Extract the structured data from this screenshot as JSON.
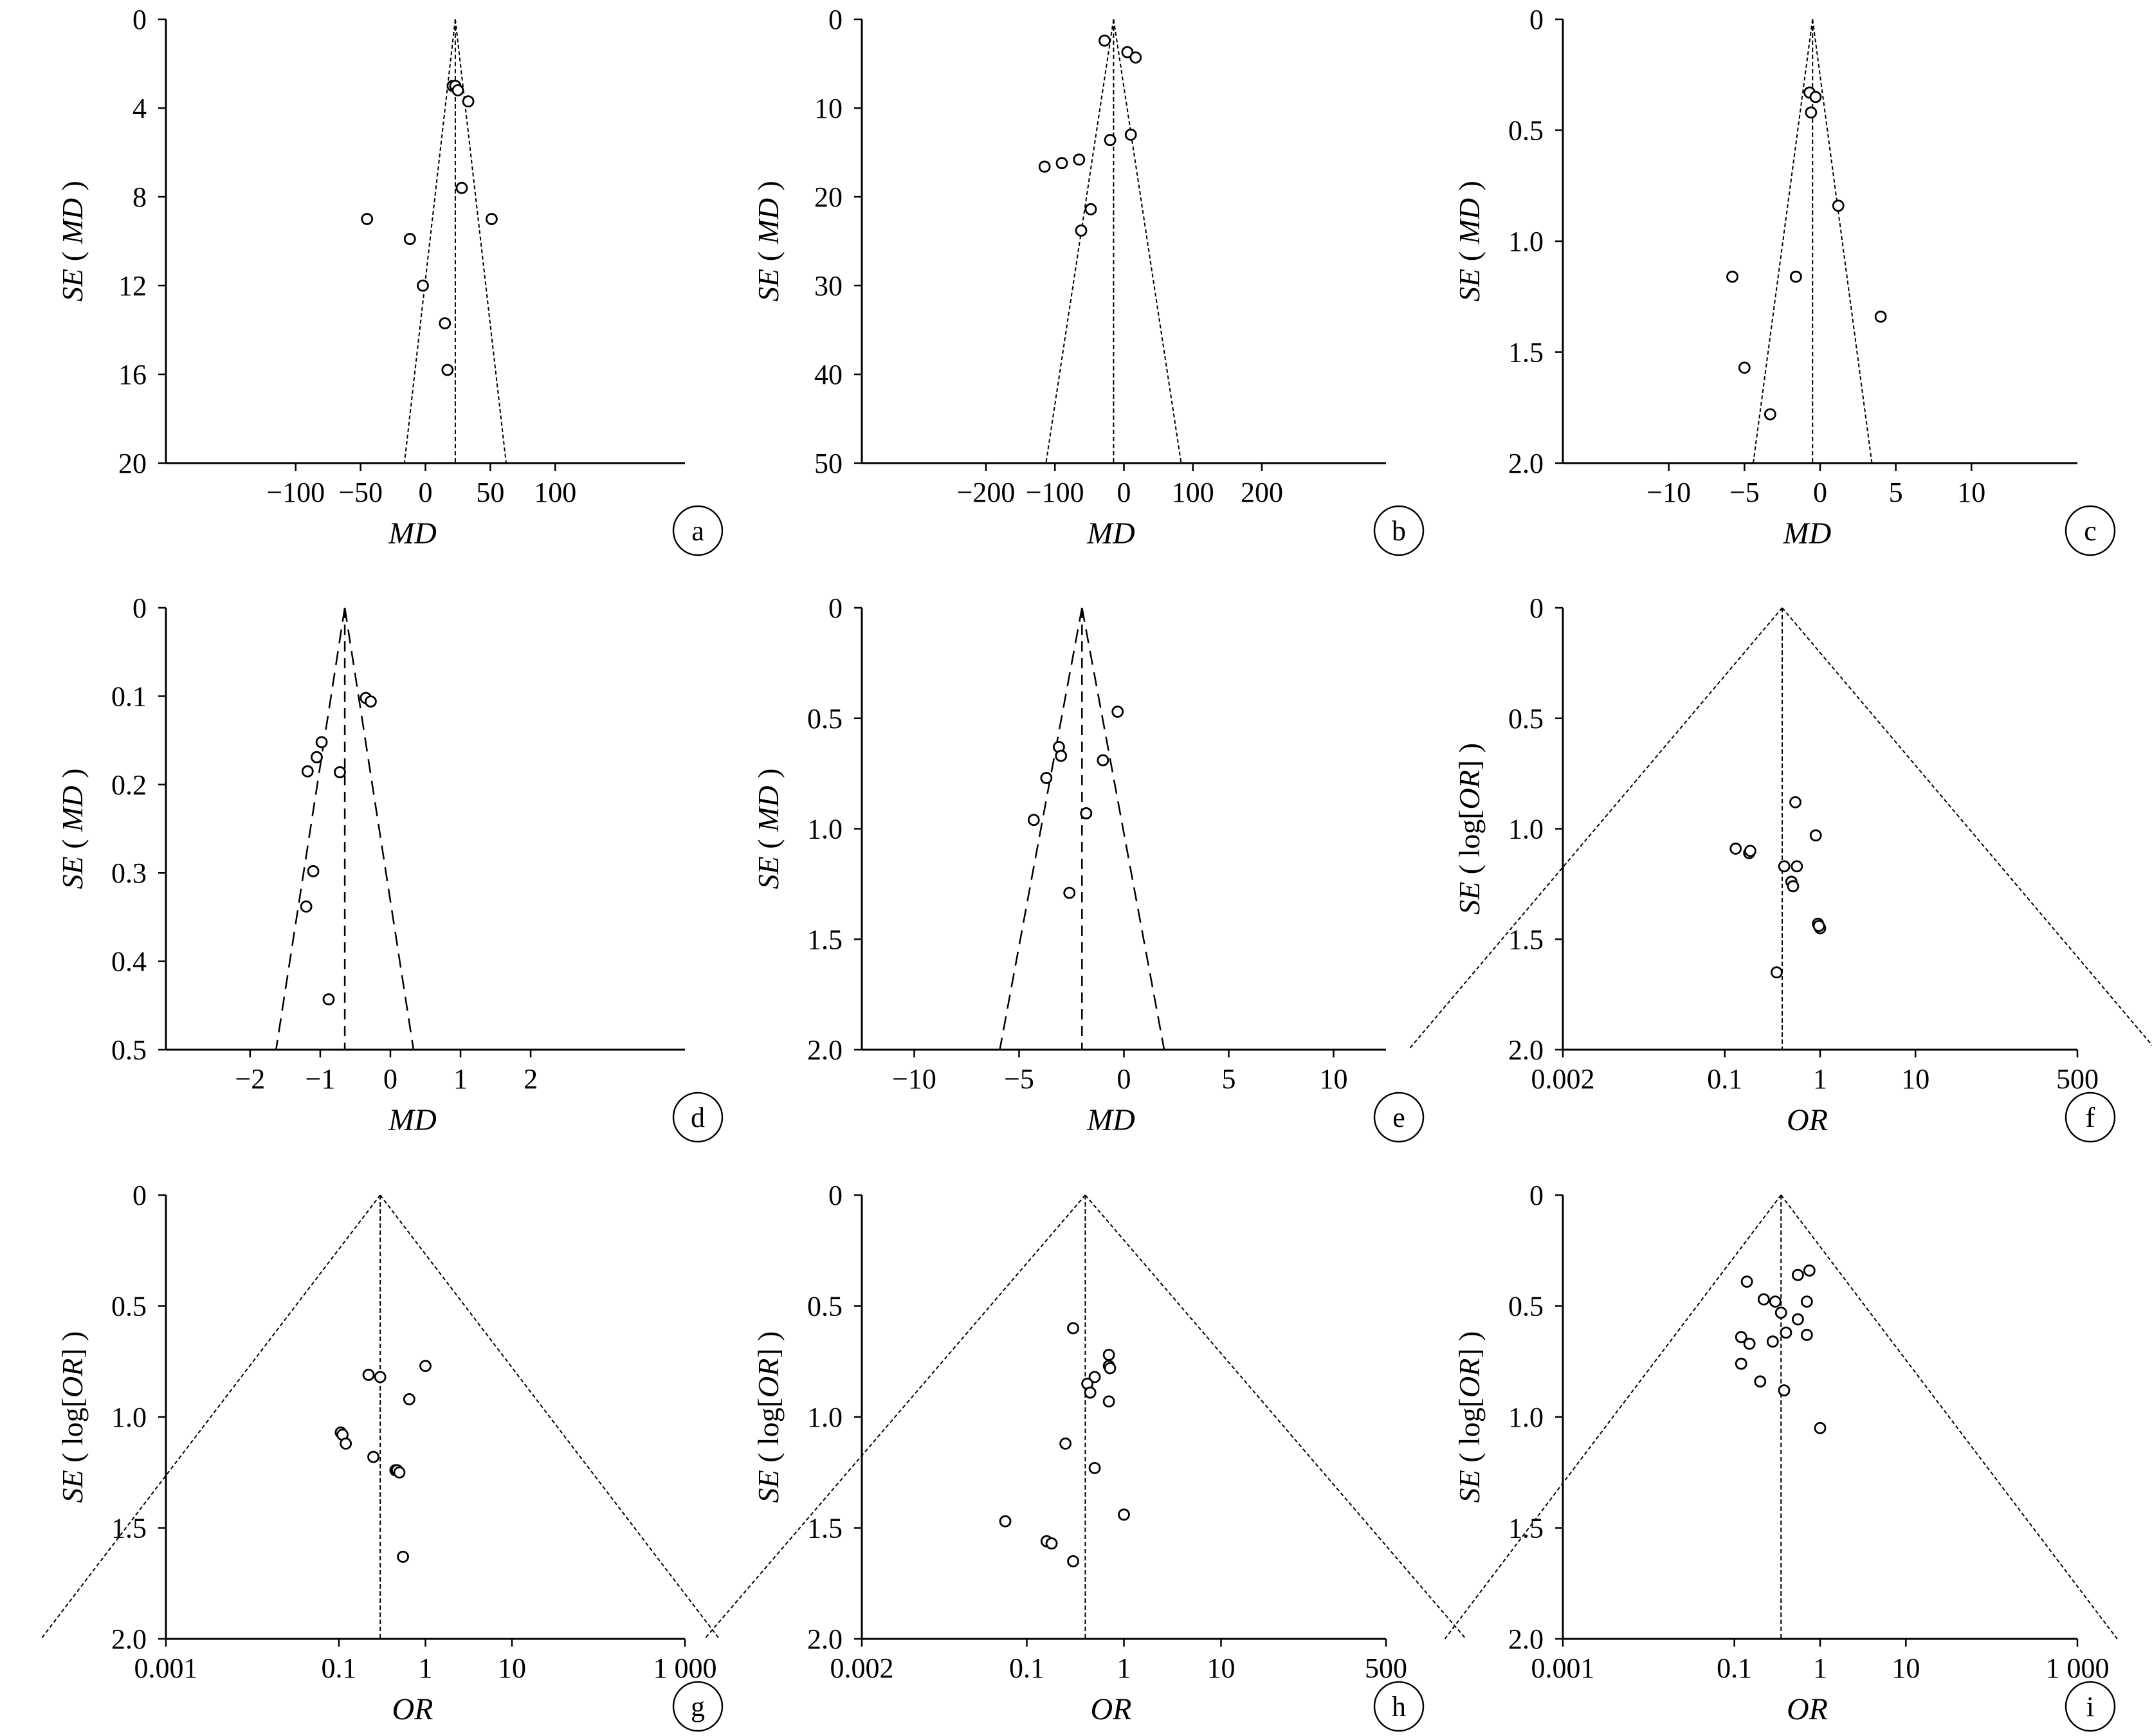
{
  "chart_data": [
    {
      "type": "scatter",
      "panel": "a",
      "xlabel": "MD",
      "ylabel": "SE ( MD )",
      "xscale": "linear",
      "xlim": [
        -200,
        200
      ],
      "ylim": [
        0,
        20
      ],
      "y_inverted": true,
      "xticks": [
        {
          "v": -100,
          "label": "−100"
        },
        {
          "v": -50,
          "label": "−50"
        },
        {
          "v": 0,
          "label": "0"
        },
        {
          "v": 50,
          "label": "50"
        },
        {
          "v": 100,
          "label": "100"
        }
      ],
      "yticks": [
        {
          "v": 0,
          "label": "0"
        },
        {
          "v": 4,
          "label": "4"
        },
        {
          "v": 8,
          "label": "8"
        },
        {
          "v": 12,
          "label": "12"
        },
        {
          "v": 16,
          "label": "16"
        },
        {
          "v": 20,
          "label": "20"
        }
      ],
      "funnel": {
        "pooled": 23,
        "z": 1.96,
        "linestyle": "fine"
      },
      "points": [
        [
          21,
          3.0
        ],
        [
          23,
          3.0
        ],
        [
          25,
          3.2
        ],
        [
          33,
          3.7
        ],
        [
          28,
          7.6
        ],
        [
          -45,
          9.0
        ],
        [
          51,
          9.0
        ],
        [
          -12,
          9.9
        ],
        [
          -2,
          12.0
        ],
        [
          15,
          13.7
        ],
        [
          17,
          15.8
        ]
      ]
    },
    {
      "type": "scatter",
      "panel": "b",
      "xlabel": "MD",
      "ylabel": "SE ( MD )",
      "xscale": "linear",
      "xlim": [
        -380,
        380
      ],
      "ylim": [
        0,
        50
      ],
      "y_inverted": true,
      "xticks": [
        {
          "v": -200,
          "label": "−200"
        },
        {
          "v": -100,
          "label": "−100"
        },
        {
          "v": 0,
          "label": "0"
        },
        {
          "v": 100,
          "label": "100"
        },
        {
          "v": 200,
          "label": "200"
        }
      ],
      "yticks": [
        {
          "v": 0,
          "label": "0"
        },
        {
          "v": 10,
          "label": "10"
        },
        {
          "v": 20,
          "label": "20"
        },
        {
          "v": 30,
          "label": "30"
        },
        {
          "v": 40,
          "label": "40"
        },
        {
          "v": 50,
          "label": "50"
        }
      ],
      "funnel": {
        "pooled": -15,
        "z": 1.96,
        "linestyle": "fine"
      },
      "points": [
        [
          -28,
          2.4
        ],
        [
          5,
          3.7
        ],
        [
          17,
          4.3
        ],
        [
          -20,
          13.6
        ],
        [
          10,
          13.0
        ],
        [
          -65,
          15.8
        ],
        [
          -90,
          16.2
        ],
        [
          -115,
          16.6
        ],
        [
          -48,
          21.4
        ],
        [
          -62,
          23.8
        ]
      ]
    },
    {
      "type": "scatter",
      "panel": "c",
      "xlabel": "MD",
      "ylabel": "SE ( MD )",
      "xscale": "linear",
      "xlim": [
        -17,
        17
      ],
      "ylim": [
        0,
        2.0
      ],
      "y_inverted": true,
      "xticks": [
        {
          "v": -10,
          "label": "−10"
        },
        {
          "v": -5,
          "label": "−5"
        },
        {
          "v": 0,
          "label": "0"
        },
        {
          "v": 5,
          "label": "5"
        },
        {
          "v": 10,
          "label": "10"
        }
      ],
      "yticks": [
        {
          "v": 0,
          "label": "0"
        },
        {
          "v": 0.5,
          "label": "0.5"
        },
        {
          "v": 1.0,
          "label": "1.0"
        },
        {
          "v": 1.5,
          "label": "1.5"
        },
        {
          "v": 2.0,
          "label": "2.0"
        }
      ],
      "funnel": {
        "pooled": -0.5,
        "z": 1.96,
        "linestyle": "fine"
      },
      "points": [
        [
          -0.7,
          0.33
        ],
        [
          -0.3,
          0.35
        ],
        [
          -0.6,
          0.42
        ],
        [
          1.2,
          0.84
        ],
        [
          -5.8,
          1.16
        ],
        [
          -1.6,
          1.16
        ],
        [
          4.0,
          1.34
        ],
        [
          -5.0,
          1.57
        ],
        [
          -3.3,
          1.78
        ]
      ]
    },
    {
      "type": "scatter",
      "panel": "d",
      "xlabel": "MD",
      "ylabel": "SE ( MD )",
      "xscale": "linear",
      "xlim": [
        -3.2,
        4.2
      ],
      "ylim": [
        0,
        0.5
      ],
      "y_inverted": true,
      "xticks": [
        {
          "v": -2,
          "label": "−2"
        },
        {
          "v": -1,
          "label": "−1"
        },
        {
          "v": 0,
          "label": "0"
        },
        {
          "v": 1,
          "label": "1"
        },
        {
          "v": 2,
          "label": "2"
        }
      ],
      "yticks": [
        {
          "v": 0,
          "label": "0"
        },
        {
          "v": 0.1,
          "label": "0.1"
        },
        {
          "v": 0.2,
          "label": "0.2"
        },
        {
          "v": 0.3,
          "label": "0.3"
        },
        {
          "v": 0.4,
          "label": "0.4"
        },
        {
          "v": 0.5,
          "label": "0.5"
        }
      ],
      "funnel": {
        "pooled": -0.65,
        "z": 1.96,
        "linestyle": "long"
      },
      "points": [
        [
          -0.35,
          0.102
        ],
        [
          -0.28,
          0.106
        ],
        [
          -0.98,
          0.152
        ],
        [
          -1.05,
          0.169
        ],
        [
          -1.18,
          0.185
        ],
        [
          -0.72,
          0.186
        ],
        [
          -1.1,
          0.298
        ],
        [
          -1.2,
          0.338
        ],
        [
          -0.88,
          0.443
        ]
      ]
    },
    {
      "type": "scatter",
      "panel": "e",
      "xlabel": "MD",
      "ylabel": "SE ( MD )",
      "xscale": "linear",
      "xlim": [
        -12.5,
        12.5
      ],
      "ylim": [
        0,
        2.0
      ],
      "y_inverted": true,
      "xticks": [
        {
          "v": -10,
          "label": "−10"
        },
        {
          "v": -5,
          "label": "−5"
        },
        {
          "v": 0,
          "label": "0"
        },
        {
          "v": 5,
          "label": "5"
        },
        {
          "v": 10,
          "label": "10"
        }
      ],
      "yticks": [
        {
          "v": 0,
          "label": "0"
        },
        {
          "v": 0.5,
          "label": "0.5"
        },
        {
          "v": 1.0,
          "label": "1.0"
        },
        {
          "v": 1.5,
          "label": "1.5"
        },
        {
          "v": 2.0,
          "label": "2.0"
        }
      ],
      "funnel": {
        "pooled": -2,
        "z": 1.96,
        "linestyle": "long"
      },
      "points": [
        [
          -0.3,
          0.47
        ],
        [
          -3.1,
          0.63
        ],
        [
          -3.0,
          0.67
        ],
        [
          -1.0,
          0.69
        ],
        [
          -3.7,
          0.77
        ],
        [
          -4.3,
          0.96
        ],
        [
          -1.8,
          0.93
        ],
        [
          -2.6,
          1.29
        ]
      ]
    },
    {
      "type": "scatter",
      "panel": "f",
      "xlabel": "OR",
      "ylabel": "SE ( log[OR] )",
      "xscale": "log",
      "xlim": [
        0.002,
        500
      ],
      "ylim": [
        0,
        2.0
      ],
      "y_inverted": true,
      "xticks": [
        {
          "v": 0.002,
          "label": "0.002"
        },
        {
          "v": 0.1,
          "label": "0.1"
        },
        {
          "v": 1,
          "label": "1"
        },
        {
          "v": 10,
          "label": "10"
        },
        {
          "v": 500,
          "label": "500"
        }
      ],
      "yticks": [
        {
          "v": 0,
          "label": "0"
        },
        {
          "v": 0.5,
          "label": "0.5"
        },
        {
          "v": 1.0,
          "label": "1.0"
        },
        {
          "v": 1.5,
          "label": "1.5"
        },
        {
          "v": 2.0,
          "label": "2.0"
        }
      ],
      "funnel": {
        "pooled": 0.4,
        "z": 1.96,
        "linestyle": "fine"
      },
      "points": [
        [
          0.55,
          0.88
        ],
        [
          0.9,
          1.03
        ],
        [
          0.13,
          1.09
        ],
        [
          0.18,
          1.11
        ],
        [
          0.185,
          1.1
        ],
        [
          0.42,
          1.17
        ],
        [
          0.57,
          1.17
        ],
        [
          0.5,
          1.24
        ],
        [
          0.52,
          1.26
        ],
        [
          0.95,
          1.43
        ],
        [
          1.0,
          1.45
        ],
        [
          0.97,
          1.44
        ],
        [
          0.35,
          1.65
        ]
      ]
    },
    {
      "type": "scatter",
      "panel": "g",
      "xlabel": "OR",
      "ylabel": "SE ( log[OR] )",
      "xscale": "log",
      "xlim": [
        0.001,
        1000
      ],
      "ylim": [
        0,
        2.0
      ],
      "y_inverted": true,
      "xticks": [
        {
          "v": 0.001,
          "label": "0.001"
        },
        {
          "v": 0.1,
          "label": "0.1"
        },
        {
          "v": 1,
          "label": "1"
        },
        {
          "v": 10,
          "label": "10"
        },
        {
          "v": 1000,
          "label": "1 000"
        }
      ],
      "yticks": [
        {
          "v": 0,
          "label": "0"
        },
        {
          "v": 0.5,
          "label": "0.5"
        },
        {
          "v": 1.0,
          "label": "1.0"
        },
        {
          "v": 1.5,
          "label": "1.5"
        },
        {
          "v": 2.0,
          "label": "2.0"
        }
      ],
      "funnel": {
        "pooled": 0.3,
        "z": 1.96,
        "linestyle": "fine"
      },
      "points": [
        [
          1.0,
          0.77
        ],
        [
          0.22,
          0.81
        ],
        [
          0.3,
          0.82
        ],
        [
          0.65,
          0.92
        ],
        [
          0.105,
          1.07
        ],
        [
          0.11,
          1.08
        ],
        [
          0.12,
          1.12
        ],
        [
          0.25,
          1.18
        ],
        [
          0.45,
          1.24
        ],
        [
          0.47,
          1.24
        ],
        [
          0.5,
          1.25
        ],
        [
          0.55,
          1.63
        ]
      ]
    },
    {
      "type": "scatter",
      "panel": "h",
      "xlabel": "OR",
      "ylabel": "SE ( log[OR] )",
      "xscale": "log",
      "xlim": [
        0.002,
        500
      ],
      "ylim": [
        0,
        2.0
      ],
      "y_inverted": true,
      "xticks": [
        {
          "v": 0.002,
          "label": "0.002"
        },
        {
          "v": 0.1,
          "label": "0.1"
        },
        {
          "v": 1,
          "label": "1"
        },
        {
          "v": 10,
          "label": "10"
        },
        {
          "v": 500,
          "label": "500"
        }
      ],
      "yticks": [
        {
          "v": 0,
          "label": "0"
        },
        {
          "v": 0.5,
          "label": "0.5"
        },
        {
          "v": 1.0,
          "label": "1.0"
        },
        {
          "v": 1.5,
          "label": "1.5"
        },
        {
          "v": 2.0,
          "label": "2.0"
        }
      ],
      "funnel": {
        "pooled": 0.4,
        "z": 1.96,
        "linestyle": "fine"
      },
      "points": [
        [
          0.3,
          0.6
        ],
        [
          0.7,
          0.72
        ],
        [
          0.7,
          0.77
        ],
        [
          0.72,
          0.78
        ],
        [
          0.5,
          0.82
        ],
        [
          0.42,
          0.85
        ],
        [
          0.45,
          0.89
        ],
        [
          0.7,
          0.93
        ],
        [
          0.25,
          1.12
        ],
        [
          0.5,
          1.23
        ],
        [
          1.0,
          1.44
        ],
        [
          0.06,
          1.47
        ],
        [
          0.16,
          1.56
        ],
        [
          0.18,
          1.57
        ],
        [
          0.3,
          1.65
        ]
      ]
    },
    {
      "type": "scatter",
      "panel": "i",
      "xlabel": "OR",
      "ylabel": "SE ( log[OR] )",
      "xscale": "log",
      "xlim": [
        0.001,
        1000
      ],
      "ylim": [
        0,
        2.0
      ],
      "y_inverted": true,
      "xticks": [
        {
          "v": 0.001,
          "label": "0.001"
        },
        {
          "v": 0.1,
          "label": "0.1"
        },
        {
          "v": 1,
          "label": "1"
        },
        {
          "v": 10,
          "label": "10"
        },
        {
          "v": 1000,
          "label": "1 000"
        }
      ],
      "yticks": [
        {
          "v": 0,
          "label": "0"
        },
        {
          "v": 0.5,
          "label": "0.5"
        },
        {
          "v": 1.0,
          "label": "1.0"
        },
        {
          "v": 1.5,
          "label": "1.5"
        },
        {
          "v": 2.0,
          "label": "2.0"
        }
      ],
      "funnel": {
        "pooled": 0.35,
        "z": 1.96,
        "linestyle": "fine"
      },
      "points": [
        [
          0.75,
          0.34
        ],
        [
          0.55,
          0.36
        ],
        [
          0.14,
          0.39
        ],
        [
          0.22,
          0.47
        ],
        [
          0.3,
          0.48
        ],
        [
          0.7,
          0.48
        ],
        [
          0.35,
          0.53
        ],
        [
          0.55,
          0.56
        ],
        [
          0.7,
          0.63
        ],
        [
          0.4,
          0.62
        ],
        [
          0.12,
          0.64
        ],
        [
          0.28,
          0.66
        ],
        [
          0.15,
          0.67
        ],
        [
          0.12,
          0.76
        ],
        [
          0.2,
          0.84
        ],
        [
          0.38,
          0.88
        ],
        [
          1.0,
          1.05
        ]
      ]
    }
  ]
}
